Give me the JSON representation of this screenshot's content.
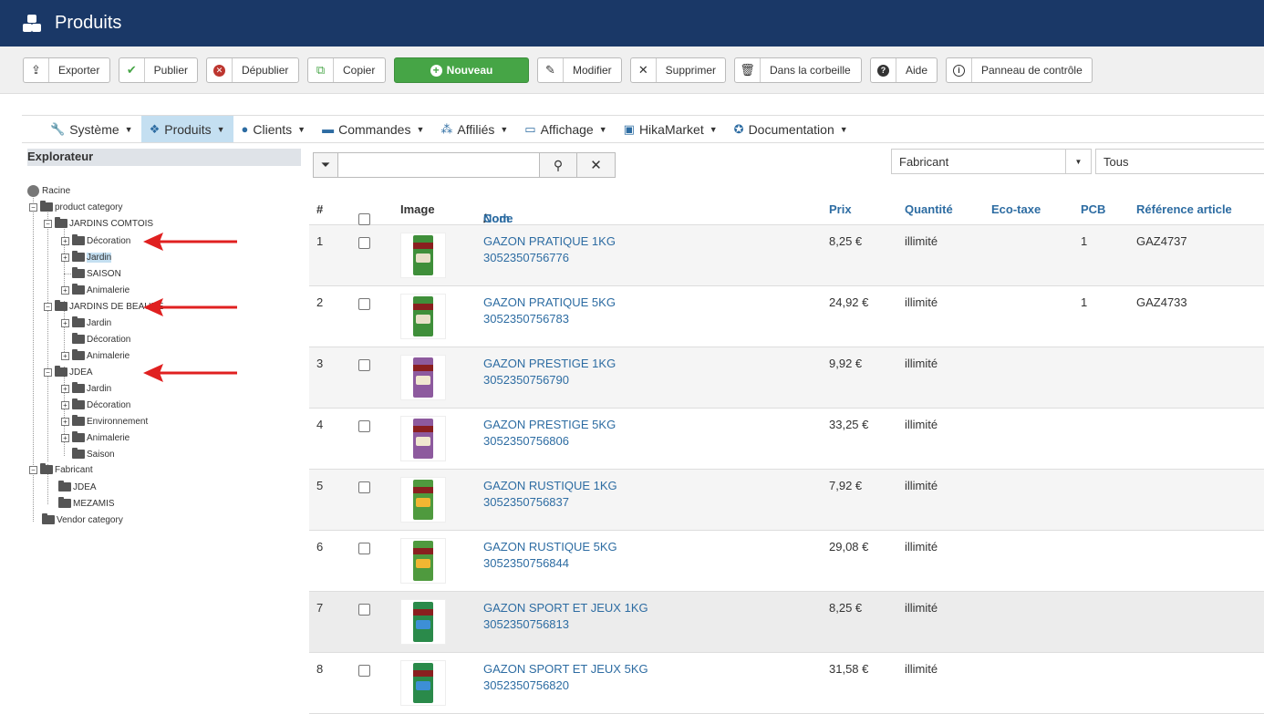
{
  "header": {
    "title": "Produits",
    "logo_icon": "cubes-icon"
  },
  "toolbar": {
    "buttons": [
      {
        "label": "Exporter",
        "icon": "export-icon"
      },
      {
        "label": "Publier",
        "icon": "check-icon"
      },
      {
        "label": "Dépublier",
        "icon": "unpublish-icon"
      },
      {
        "label": "Copier",
        "icon": "copy-icon"
      },
      {
        "label": "Nouveau",
        "icon": "plus-circle-icon"
      },
      {
        "label": "Modifier",
        "icon": "edit-icon"
      },
      {
        "label": "Supprimer",
        "icon": "close-icon"
      },
      {
        "label": "Dans la corbeille",
        "icon": "trash-icon"
      },
      {
        "label": "Aide",
        "icon": "help-icon"
      },
      {
        "label": "Panneau de contrôle",
        "icon": "info-icon"
      }
    ]
  },
  "nav": {
    "items": [
      {
        "label": "Système",
        "icon": "wrench-icon"
      },
      {
        "label": "Produits",
        "icon": "cubes-icon",
        "active": true
      },
      {
        "label": "Clients",
        "icon": "user-icon"
      },
      {
        "label": "Commandes",
        "icon": "credit-card-icon"
      },
      {
        "label": "Affiliés",
        "icon": "users-icon"
      },
      {
        "label": "Affichage",
        "icon": "monitor-icon"
      },
      {
        "label": "HikaMarket",
        "icon": "store-icon"
      },
      {
        "label": "Documentation",
        "icon": "lifebuoy-icon"
      }
    ]
  },
  "explorer": {
    "title": "Explorateur",
    "nodes": {
      "racine": "Racine",
      "product_category": "product category",
      "jardins_comtois": "JARDINS COMTOIS",
      "jc_decoration": "Décoration",
      "jc_jardin": "Jardin",
      "jc_saison": "SAISON",
      "jc_animalerie": "Animalerie",
      "jardins_beaune": "JARDINS DE BEAUNE",
      "jb_jardin": "Jardin",
      "jb_decoration": "Décoration",
      "jb_animalerie": "Animalerie",
      "jdea": "JDEA",
      "jd_jardin": "Jardin",
      "jd_decoration": "Décoration",
      "jd_environnement": "Environnement",
      "jd_animalerie": "Animalerie",
      "jd_saison": "Saison",
      "fabricant": "Fabricant",
      "fab_jdea": "JDEA",
      "fab_mezamis": "MEZAMIS",
      "vendor_category": "Vendor category"
    }
  },
  "filters": {
    "search_value": "",
    "manufacturer_select": "Fabricant",
    "status_select": "Tous"
  },
  "table": {
    "headers": {
      "num": "#",
      "image": "Image",
      "name": "Nom",
      "sep": " / ",
      "code": "Code",
      "price": "Prix",
      "quantity": "Quantité",
      "ecotax": "Eco-taxe",
      "pcb": "PCB",
      "ref": "Référence article"
    },
    "rows": [
      {
        "num": "1",
        "name": "GAZON PRATIQUE 1KG",
        "code": "3052350756776",
        "price": "8,25 €",
        "quantity": "illimité",
        "pcb": "1",
        "ref": "GAZ4737",
        "color": "#3f8f3a",
        "spot": "#e8e0c8"
      },
      {
        "num": "2",
        "name": "GAZON PRATIQUE 5KG",
        "code": "3052350756783",
        "price": "24,92 €",
        "quantity": "illimité",
        "pcb": "1",
        "ref": "GAZ4733",
        "color": "#3f8f3a",
        "spot": "#e8e0c8"
      },
      {
        "num": "3",
        "name": "GAZON PRESTIGE 1KG",
        "code": "3052350756790",
        "price": "9,92 €",
        "quantity": "illimité",
        "pcb": "",
        "ref": "",
        "color": "#8d5a9e",
        "spot": "#f0e8d0"
      },
      {
        "num": "4",
        "name": "GAZON PRESTIGE 5KG",
        "code": "3052350756806",
        "price": "33,25 €",
        "quantity": "illimité",
        "pcb": "",
        "ref": "",
        "color": "#8d5a9e",
        "spot": "#f0e8d0"
      },
      {
        "num": "5",
        "name": "GAZON RUSTIQUE 1KG",
        "code": "3052350756837",
        "price": "7,92 €",
        "quantity": "illimité",
        "pcb": "",
        "ref": "",
        "color": "#4f9a3e",
        "spot": "#f2b632"
      },
      {
        "num": "6",
        "name": "GAZON RUSTIQUE 5KG",
        "code": "3052350756844",
        "price": "29,08 €",
        "quantity": "illimité",
        "pcb": "",
        "ref": "",
        "color": "#4f9a3e",
        "spot": "#f2b632"
      },
      {
        "num": "7",
        "name": "GAZON SPORT ET JEUX 1KG",
        "code": "3052350756813",
        "price": "8,25 €",
        "quantity": "illimité",
        "pcb": "",
        "ref": "",
        "color": "#2a8a4a",
        "spot": "#3d8fd6"
      },
      {
        "num": "8",
        "name": "GAZON SPORT ET JEUX 5KG",
        "code": "3052350756820",
        "price": "31,58 €",
        "quantity": "illimité",
        "pcb": "",
        "ref": "",
        "color": "#2a8a4a",
        "spot": "#3d8fd6"
      }
    ]
  }
}
